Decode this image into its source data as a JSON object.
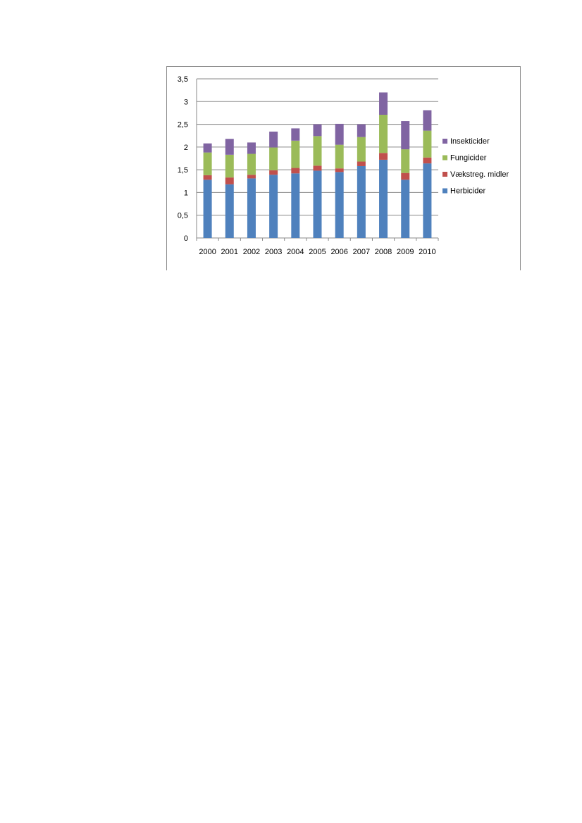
{
  "chart_data": {
    "type": "bar",
    "stacked": true,
    "categories": [
      "2000",
      "2001",
      "2002",
      "2003",
      "2004",
      "2005",
      "2006",
      "2007",
      "2008",
      "2009",
      "2010"
    ],
    "series": [
      {
        "name": "Herbicider",
        "color": "#4f81bd",
        "values": [
          1.28,
          1.18,
          1.31,
          1.39,
          1.42,
          1.48,
          1.45,
          1.58,
          1.72,
          1.28,
          1.64
        ]
      },
      {
        "name": "Vækstreg. midler",
        "color": "#c0504d",
        "values": [
          0.1,
          0.15,
          0.08,
          0.1,
          0.12,
          0.11,
          0.08,
          0.1,
          0.15,
          0.15,
          0.13
        ]
      },
      {
        "name": "Fungicider",
        "color": "#9bbb59",
        "values": [
          0.5,
          0.5,
          0.46,
          0.5,
          0.6,
          0.65,
          0.52,
          0.54,
          0.84,
          0.52,
          0.59
        ]
      },
      {
        "name": "Insekticider",
        "color": "#8064a2",
        "values": [
          0.2,
          0.35,
          0.25,
          0.35,
          0.27,
          0.26,
          0.46,
          0.28,
          0.49,
          0.62,
          0.45
        ]
      }
    ],
    "ylim": [
      0,
      3.5
    ],
    "yticks": [
      "0",
      "0,5",
      "1",
      "1,5",
      "2",
      "2,5",
      "3",
      "3,5"
    ],
    "ytick_values": [
      0,
      0.5,
      1,
      1.5,
      2,
      2.5,
      3,
      3.5
    ],
    "grid": true,
    "legend_position": "right",
    "legend_order": [
      "Insekticider",
      "Fungicider",
      "Vækstreg. midler",
      "Herbicider"
    ]
  }
}
